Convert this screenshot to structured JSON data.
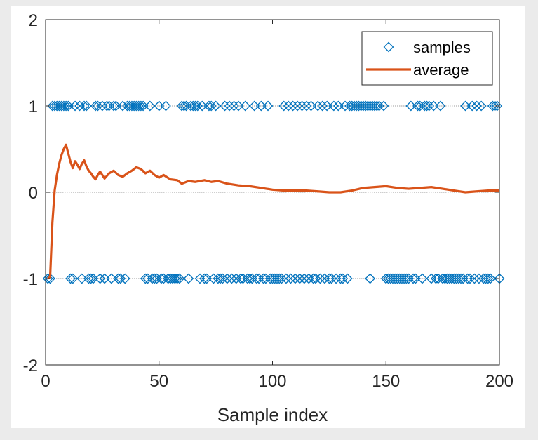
{
  "chart_data": {
    "type": "scatter",
    "xlabel": "Sample index",
    "ylabel": "",
    "title": "",
    "xlim": [
      0,
      200
    ],
    "ylim": [
      -2,
      2
    ],
    "xticks": [
      "0",
      "50",
      "100",
      "150",
      "200"
    ],
    "yticks": [
      "2",
      "1",
      "0",
      "-1",
      "-2"
    ],
    "grid": false,
    "reference_lines": [
      1,
      0,
      -1
    ],
    "legend_position": "top-right",
    "colors": {
      "samples": "#0072BD",
      "average": "#D95319",
      "refline": "#7f7f7f",
      "axis": "#262626"
    },
    "series": [
      {
        "name": "samples",
        "marker": "diamond",
        "x_plus": [
          3,
          4,
          5,
          6,
          7,
          8,
          9,
          10,
          13,
          15,
          17,
          18,
          22,
          23,
          25,
          27,
          28,
          30,
          31,
          34,
          36,
          37,
          38,
          39,
          40,
          41,
          42,
          43,
          46,
          50,
          53,
          60,
          61,
          62,
          64,
          65,
          66,
          67,
          69,
          72,
          73,
          75,
          79,
          81,
          83,
          85,
          88,
          92,
          95,
          98,
          105,
          107,
          109,
          111,
          113,
          115,
          117,
          120,
          122,
          124,
          127,
          129,
          132,
          134,
          135,
          136,
          137,
          138,
          139,
          140,
          141,
          142,
          143,
          144,
          145,
          146,
          147,
          149,
          161,
          164,
          165,
          167,
          168,
          169,
          171,
          174,
          185,
          188,
          190,
          192,
          197,
          198,
          199
        ],
        "x_minus": [
          1,
          2,
          11,
          12,
          16,
          19,
          20,
          21,
          24,
          26,
          29,
          32,
          33,
          35,
          44,
          45,
          47,
          48,
          49,
          51,
          52,
          54,
          55,
          56,
          57,
          58,
          59,
          63,
          68,
          70,
          71,
          74,
          76,
          77,
          78,
          80,
          82,
          84,
          86,
          87,
          89,
          90,
          91,
          93,
          94,
          96,
          97,
          99,
          100,
          101,
          102,
          103,
          104,
          106,
          108,
          110,
          112,
          114,
          116,
          118,
          119,
          121,
          123,
          125,
          126,
          128,
          130,
          131,
          133,
          143,
          150,
          151,
          152,
          153,
          154,
          155,
          156,
          157,
          158,
          159,
          160,
          162,
          163,
          166,
          170,
          172,
          173,
          175,
          176,
          177,
          178,
          179,
          180,
          181,
          182,
          183,
          184,
          186,
          187,
          189,
          191,
          193,
          194,
          195,
          196,
          200
        ]
      },
      {
        "name": "average",
        "x": [
          1,
          2,
          3,
          4,
          5,
          6,
          7,
          8,
          9,
          10,
          11,
          12,
          13,
          14,
          15,
          16,
          17,
          18,
          19,
          20,
          21,
          22,
          23,
          24,
          25,
          26,
          27,
          28,
          30,
          32,
          34,
          36,
          38,
          40,
          42,
          44,
          46,
          48,
          50,
          52,
          55,
          58,
          60,
          63,
          66,
          70,
          73,
          76,
          80,
          85,
          90,
          95,
          100,
          105,
          110,
          115,
          120,
          125,
          130,
          135,
          140,
          145,
          150,
          155,
          160,
          165,
          170,
          175,
          180,
          185,
          190,
          195,
          200
        ],
        "y": [
          -1.0,
          -0.98,
          -0.35,
          0.02,
          0.2,
          0.33,
          0.43,
          0.5,
          0.55,
          0.45,
          0.35,
          0.28,
          0.36,
          0.32,
          0.27,
          0.33,
          0.37,
          0.3,
          0.25,
          0.22,
          0.18,
          0.15,
          0.2,
          0.24,
          0.2,
          0.16,
          0.19,
          0.22,
          0.25,
          0.2,
          0.18,
          0.22,
          0.25,
          0.29,
          0.27,
          0.22,
          0.25,
          0.2,
          0.17,
          0.2,
          0.15,
          0.14,
          0.1,
          0.13,
          0.12,
          0.14,
          0.12,
          0.13,
          0.1,
          0.08,
          0.07,
          0.05,
          0.03,
          0.02,
          0.02,
          0.02,
          0.01,
          0.0,
          0.0,
          0.02,
          0.05,
          0.06,
          0.07,
          0.05,
          0.04,
          0.05,
          0.06,
          0.04,
          0.02,
          0.0,
          0.01,
          0.02,
          0.02
        ]
      }
    ]
  }
}
